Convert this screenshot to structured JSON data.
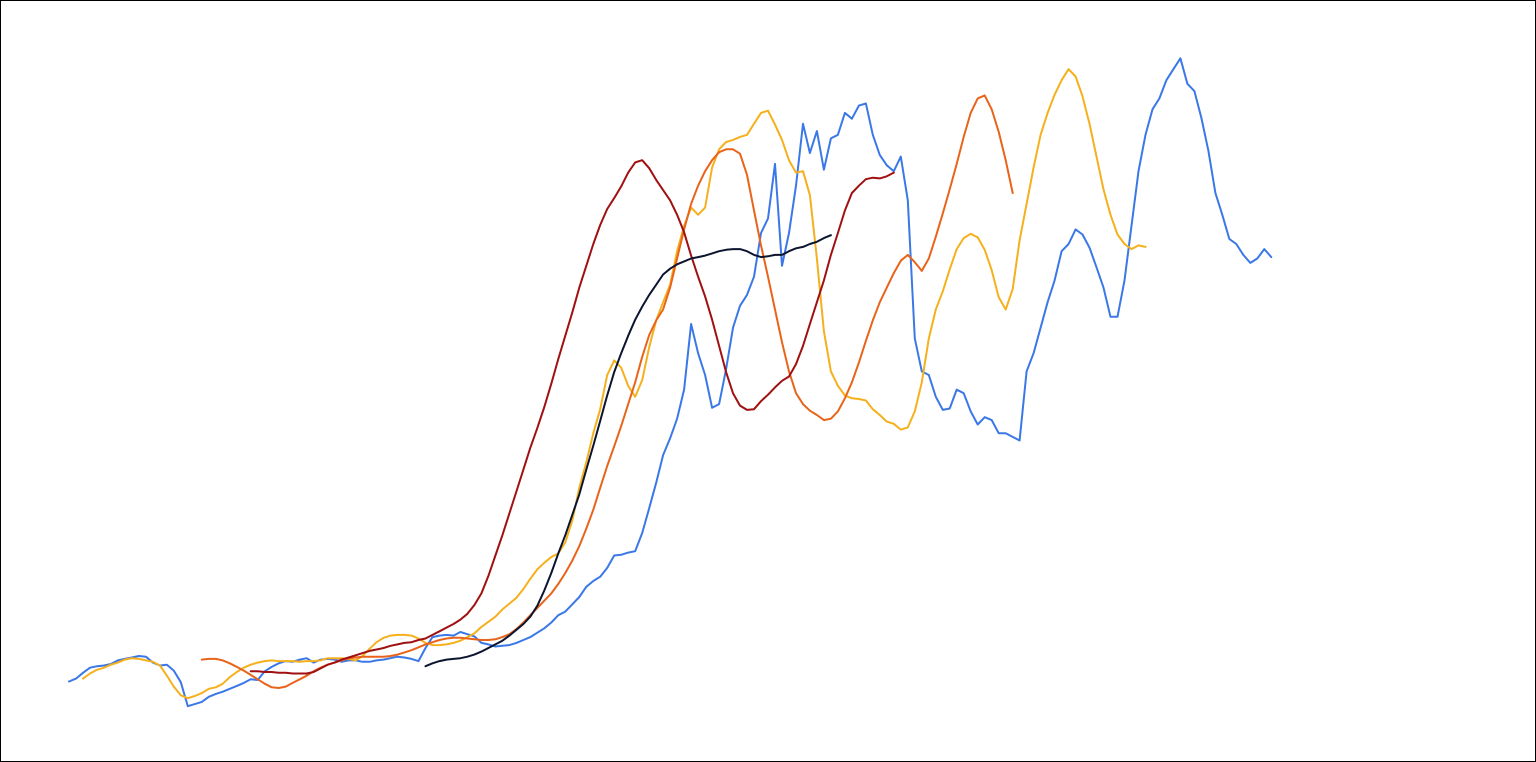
{
  "chart_data": {
    "type": "line",
    "title": "",
    "xlabel": "",
    "ylabel": "",
    "grid": false,
    "legend": "none",
    "xlim": [
      0,
      1000
    ],
    "ylim": [
      0,
      100
    ],
    "x_step": 5,
    "series": [
      {
        "color": "#3b78e7",
        "stroke_width": 2,
        "x_start": 0,
        "values": [
          7.9,
          8.3,
          9.1,
          9.8,
          10.0,
          10.1,
          10.3,
          10.8,
          11.0,
          11.2,
          11.4,
          11.3,
          10.5,
          10.1,
          10.2,
          9.4,
          7.8,
          4.5,
          4.8,
          5.1,
          5.8,
          6.2,
          6.5,
          6.9,
          7.3,
          7.7,
          8.2,
          8.1,
          9.3,
          9.9,
          10.4,
          10.7,
          10.6,
          10.9,
          11.1,
          10.5,
          10.9,
          11.0,
          10.9,
          10.6,
          10.8,
          10.8,
          10.6,
          10.6,
          10.8,
          10.9,
          11.1,
          11.3,
          11.2,
          11.0,
          10.7,
          12.5,
          14.0,
          14.2,
          14.3,
          14.2,
          14.7,
          14.4,
          14.1,
          13.2,
          13.0,
          12.7,
          12.8,
          12.9,
          13.2,
          13.6,
          14.0,
          14.6,
          15.2,
          16.0,
          17.0,
          17.5,
          18.5,
          19.5,
          20.9,
          21.7,
          22.3,
          23.5,
          25.2,
          25.3,
          25.6,
          25.8,
          28.3,
          31.7,
          35.2,
          39.0,
          41.3,
          44.0,
          48.0,
          57.0,
          53.0,
          50.0,
          45.5,
          46.0,
          50.8,
          56.5,
          59.5,
          61.0,
          63.5,
          69.5,
          71.5,
          79.0,
          65.0,
          69.5,
          76.0,
          84.5,
          80.5,
          83.5,
          78.2,
          82.5,
          83.0,
          86.0,
          85.2,
          87.0,
          87.3,
          83.0,
          80.2,
          78.8,
          78.0,
          80.0,
          74.0,
          55.0,
          50.5,
          50.0,
          47.0,
          45.2,
          45.4,
          48.0,
          47.5,
          45.0,
          43.2,
          44.2,
          43.8,
          42.0,
          42.0,
          41.5,
          41.0,
          50.5,
          53.0,
          56.5,
          60.0,
          63.0,
          67.0,
          68.0,
          70.0,
          69.3,
          67.5,
          64.8,
          62.0,
          58.0,
          58.0,
          63.0,
          70.5,
          78.0,
          83.0,
          86.5,
          88.0,
          90.5,
          92.0,
          93.5,
          90.0,
          89.0,
          85.3,
          80.8,
          75.0,
          72.0,
          68.7,
          68.0,
          66.5,
          65.4,
          66.0,
          67.3,
          66.2
        ]
      },
      {
        "color": "#f5b01d",
        "stroke_width": 2,
        "x_start": 10,
        "values": [
          8.3,
          9.0,
          9.5,
          9.8,
          10.2,
          10.5,
          10.9,
          11.1,
          11.0,
          10.8,
          10.6,
          10.1,
          8.7,
          7.2,
          6.0,
          5.6,
          5.9,
          6.3,
          6.9,
          7.1,
          7.6,
          8.5,
          9.2,
          9.8,
          10.2,
          10.5,
          10.7,
          10.8,
          10.7,
          10.7,
          10.7,
          10.6,
          10.7,
          10.7,
          10.8,
          11.1,
          11.1,
          11.1,
          11.0,
          10.8,
          11.4,
          12.4,
          13.3,
          13.9,
          14.2,
          14.3,
          14.3,
          14.2,
          13.8,
          13.2,
          12.9,
          12.9,
          13.0,
          13.2,
          13.5,
          14.0,
          14.5,
          15.4,
          16.1,
          16.8,
          17.8,
          18.6,
          19.4,
          20.6,
          22.0,
          23.3,
          24.2,
          25.0,
          25.5,
          27.0,
          30.0,
          34.5,
          38.0,
          42.0,
          45.3,
          50.0,
          52.0,
          51.0,
          48.5,
          47.0,
          49.3,
          53.8,
          57.5,
          60.0,
          62.4,
          67.0,
          70.5,
          73.0,
          72.0,
          73.0,
          78.5,
          81.0,
          82.0,
          82.3,
          82.7,
          83.0,
          84.5,
          86.0,
          86.3,
          84.4,
          82.3,
          79.5,
          77.8,
          78.0,
          74.7,
          66.0,
          56.0,
          50.5,
          48.5,
          47.2,
          46.8,
          46.7,
          46.5,
          45.3,
          44.5,
          43.6,
          43.3,
          42.5,
          42.8,
          45.0,
          49.0,
          55.0,
          59.0,
          61.5,
          64.5,
          67.3,
          68.8,
          69.4,
          68.9,
          67.2,
          64.4,
          60.7,
          59.0,
          61.8,
          68.5,
          73.5,
          78.5,
          83.0,
          86.0,
          88.5,
          90.5,
          92.0,
          91.0,
          88.3,
          84.5,
          80.0,
          75.5,
          72.0,
          69.3,
          68.0,
          67.3,
          67.8,
          67.6
        ]
      },
      {
        "color": "#e8641a",
        "stroke_width": 2,
        "x_start": 95,
        "values": [
          10.9,
          11.0,
          11.0,
          10.8,
          10.4,
          9.9,
          9.4,
          8.8,
          8.2,
          7.6,
          7.1,
          7.0,
          7.2,
          7.7,
          8.2,
          8.7,
          9.3,
          9.8,
          10.2,
          10.5,
          10.8,
          11.1,
          11.2,
          11.3,
          11.3,
          11.3,
          11.3,
          11.4,
          11.6,
          11.9,
          12.2,
          12.6,
          13.0,
          13.3,
          13.6,
          13.8,
          13.9,
          13.9,
          13.8,
          13.7,
          13.6,
          13.6,
          13.7,
          14.0,
          14.4,
          15.1,
          16.0,
          17.0,
          18.0,
          19.0,
          20.0,
          21.3,
          22.8,
          24.5,
          26.5,
          28.9,
          31.5,
          34.5,
          37.5,
          40.2,
          43.0,
          46.0,
          49.0,
          52.5,
          55.5,
          57.5,
          59.0,
          62.0,
          66.0,
          70.0,
          73.5,
          76.0,
          78.0,
          79.5,
          80.6,
          81.0,
          81.0,
          80.4,
          77.5,
          72.6,
          67.8,
          63.5,
          59.0,
          54.5,
          50.5,
          47.5,
          46.0,
          45.1,
          44.5,
          43.8,
          44.0,
          45.0,
          46.8,
          49.0,
          51.7,
          54.7,
          57.5,
          60.0,
          62.0,
          64.0,
          65.7,
          66.5,
          65.5,
          64.3,
          66.0,
          69.0,
          72.2,
          75.5,
          79.0,
          82.7,
          86.0,
          88.0,
          88.4,
          86.5,
          83.4,
          79.5,
          75.0
        ]
      },
      {
        "color": "#a01010",
        "stroke_width": 2,
        "x_start": 130,
        "values": [
          9.3,
          9.3,
          9.2,
          9.2,
          9.1,
          9.1,
          9.0,
          9.0,
          9.0,
          9.2,
          9.7,
          10.2,
          10.5,
          10.9,
          11.2,
          11.5,
          11.8,
          12.1,
          12.3,
          12.5,
          12.8,
          13.0,
          13.2,
          13.3,
          13.6,
          13.8,
          14.3,
          14.8,
          15.3,
          15.8,
          16.4,
          17.2,
          18.4,
          20.0,
          22.4,
          25.2,
          28.0,
          31.0,
          34.0,
          37.0,
          40.0,
          42.7,
          45.6,
          48.8,
          52.2,
          55.4,
          58.6,
          62.0,
          65.0,
          68.0,
          70.6,
          72.8,
          74.3,
          75.9,
          77.8,
          79.2,
          79.5,
          78.4,
          76.8,
          75.4,
          74.0,
          72.0,
          69.6,
          66.4,
          63.5,
          60.8,
          57.6,
          54.0,
          50.4,
          47.5,
          45.8,
          45.2,
          45.3,
          46.4,
          47.3,
          48.3,
          49.2,
          49.8,
          51.5,
          54.0,
          57.0,
          60.0,
          63.0,
          66.5,
          69.5,
          72.6,
          75.0,
          76.0,
          76.9,
          77.1,
          77.0,
          77.3,
          77.8
        ]
      },
      {
        "color": "#0c1530",
        "stroke_width": 2,
        "x_start": 255,
        "values": [
          10.0,
          10.4,
          10.7,
          10.9,
          11.0,
          11.1,
          11.3,
          11.6,
          12.0,
          12.5,
          13.0,
          13.5,
          14.2,
          15.0,
          15.8,
          16.8,
          18.3,
          20.4,
          22.8,
          25.5,
          28.0,
          30.8,
          33.6,
          37.0,
          40.3,
          43.7,
          47.2,
          50.4,
          53.0,
          55.4,
          57.6,
          59.4,
          61.0,
          62.4,
          63.8,
          64.6,
          65.2,
          65.6,
          66.0,
          66.2,
          66.4,
          66.7,
          67.0,
          67.2,
          67.3,
          67.3,
          67.0,
          66.5,
          66.2,
          66.3,
          66.5,
          66.5,
          67.0,
          67.4,
          67.6,
          68.0,
          68.3,
          68.8,
          69.2
        ]
      }
    ]
  }
}
